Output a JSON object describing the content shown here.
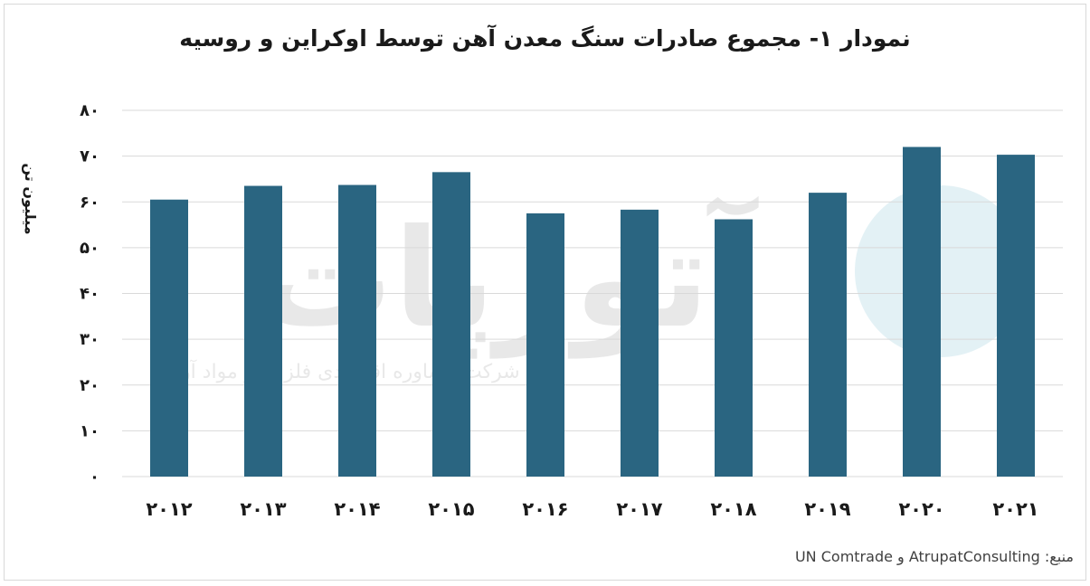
{
  "colors": {
    "bar": "#2a6581",
    "grid": "#d9d9d9",
    "text": "#1a1a1a"
  },
  "chart_data": {
    "type": "bar",
    "title": "نمودار ۱- مجموع صادرات سنگ معدن آهن توسط اوکراین و روسیه",
    "xlabel": "",
    "ylabel": "میلیون تن",
    "categories": [
      "۲۰۱۲",
      "۲۰۱۳",
      "۲۰۱۴",
      "۲۰۱۵",
      "۲۰۱۶",
      "۲۰۱۷",
      "۲۰۱۸",
      "۲۰۱۹",
      "۲۰۲۰",
      "۲۰۲۱"
    ],
    "values": [
      60.5,
      63.5,
      63.7,
      66.5,
      57.5,
      58.3,
      56.2,
      62,
      72,
      70.3
    ],
    "ylim": [
      0,
      80
    ],
    "yticks": [
      0,
      10,
      20,
      30,
      40,
      50,
      60,
      70,
      80
    ],
    "ytick_labels": [
      "۰",
      "۱۰",
      "۲۰",
      "۳۰",
      "۴۰",
      "۵۰",
      "۶۰",
      "۷۰",
      "۸۰"
    ],
    "grid": true,
    "legend": "none"
  },
  "source": "منبع: AtrupatConsulting و UN Comtrade",
  "watermark": {
    "logo_text": "آتورپات",
    "tagline": "شرکت مشاوره اقتصادی فلزات و مواد آرمان"
  }
}
